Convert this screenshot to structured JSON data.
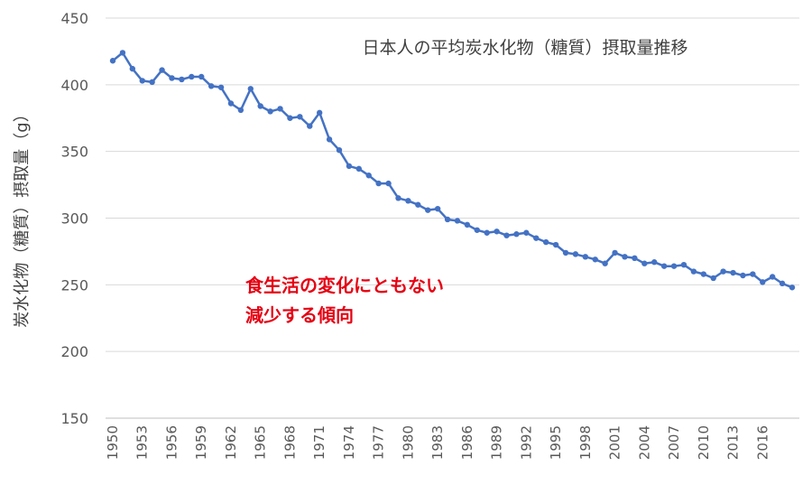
{
  "chart_data": {
    "type": "line",
    "title": "日本人の平均炭水化物（糖質）摂取量推移",
    "ylabel": "炭水化物（糖質）摂取量（g）",
    "xlabel": "",
    "ylim": [
      150,
      450
    ],
    "yticks": [
      150,
      200,
      250,
      300,
      350,
      400,
      450
    ],
    "xlim": [
      1950,
      2019
    ],
    "xtick_labels": [
      "1950",
      "1953",
      "1956",
      "1959",
      "1962",
      "1965",
      "1968",
      "1971",
      "1974",
      "1977",
      "1980",
      "1983",
      "1986",
      "1989",
      "1992",
      "1995",
      "1998",
      "2001",
      "2004",
      "2007",
      "2010",
      "2013",
      "2016"
    ],
    "grid": "horizontal",
    "annotation": [
      "食生活の変化にともない",
      "減少する傾向"
    ],
    "series": [
      {
        "color": "#4472c4",
        "x": [
          1950,
          1951,
          1952,
          1953,
          1954,
          1955,
          1956,
          1957,
          1958,
          1959,
          1960,
          1961,
          1962,
          1963,
          1964,
          1965,
          1966,
          1967,
          1968,
          1969,
          1970,
          1971,
          1972,
          1973,
          1974,
          1975,
          1976,
          1977,
          1978,
          1979,
          1980,
          1981,
          1982,
          1983,
          1984,
          1985,
          1986,
          1987,
          1988,
          1989,
          1990,
          1991,
          1992,
          1993,
          1994,
          1995,
          1996,
          1997,
          1998,
          1999,
          2000,
          2001,
          2002,
          2003,
          2004,
          2005,
          2006,
          2007,
          2008,
          2009,
          2010,
          2011,
          2012,
          2013,
          2014,
          2015,
          2016,
          2017,
          2018,
          2019
        ],
        "values": [
          418,
          424,
          412,
          403,
          402,
          411,
          405,
          404,
          406,
          406,
          399,
          398,
          386,
          381,
          397,
          384,
          380,
          382,
          375,
          376,
          369,
          379,
          359,
          351,
          339,
          337,
          332,
          326,
          326,
          315,
          313,
          310,
          306,
          307,
          299,
          298,
          295,
          291,
          289,
          290,
          287,
          288,
          289,
          285,
          282,
          280,
          274,
          273,
          271,
          269,
          266,
          274,
          271,
          270,
          266,
          267,
          264,
          264,
          265,
          260,
          258,
          255,
          260,
          259,
          257,
          258,
          252,
          256,
          251,
          248
        ]
      }
    ]
  }
}
